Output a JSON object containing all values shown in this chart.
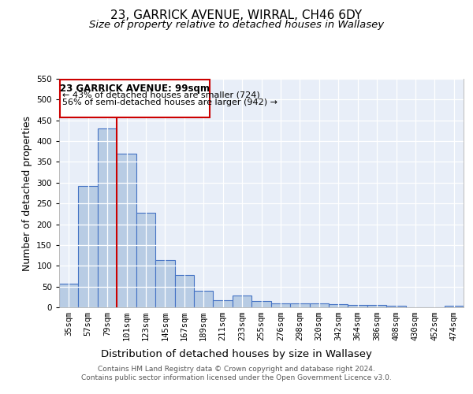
{
  "title": "23, GARRICK AVENUE, WIRRAL, CH46 6DY",
  "subtitle": "Size of property relative to detached houses in Wallasey",
  "bar_labels": [
    "35sqm",
    "57sqm",
    "79sqm",
    "101sqm",
    "123sqm",
    "145sqm",
    "167sqm",
    "189sqm",
    "211sqm",
    "233sqm",
    "255sqm",
    "276sqm",
    "298sqm",
    "320sqm",
    "342sqm",
    "364sqm",
    "386sqm",
    "408sqm",
    "430sqm",
    "452sqm",
    "474sqm"
  ],
  "bar_values": [
    57,
    293,
    430,
    370,
    227,
    113,
    77,
    39,
    18,
    28,
    15,
    10,
    9,
    10,
    7,
    5,
    5,
    3,
    0,
    0,
    4
  ],
  "bar_color": "#b8cce4",
  "bar_edge_color": "#4472c4",
  "bar_edge_width": 0.8,
  "background_color": "#e8eef8",
  "grid_color": "#ffffff",
  "ylabel": "Number of detached properties",
  "xlabel": "Distribution of detached houses by size in Wallasey",
  "ylim": [
    0,
    550
  ],
  "yticks": [
    0,
    50,
    100,
    150,
    200,
    250,
    300,
    350,
    400,
    450,
    500,
    550
  ],
  "property_label": "23 GARRICK AVENUE: 99sqm",
  "annotation_line1": "← 43% of detached houses are smaller (724)",
  "annotation_line2": "56% of semi-detached houses are larger (942) →",
  "vline_color": "#cc0000",
  "annotation_box_color": "#cc0000",
  "footer_line1": "Contains HM Land Registry data © Crown copyright and database right 2024.",
  "footer_line2": "Contains public sector information licensed under the Open Government Licence v3.0.",
  "title_fontsize": 11,
  "subtitle_fontsize": 9.5,
  "axis_label_fontsize": 9,
  "tick_fontsize": 7.5,
  "footer_fontsize": 6.5
}
